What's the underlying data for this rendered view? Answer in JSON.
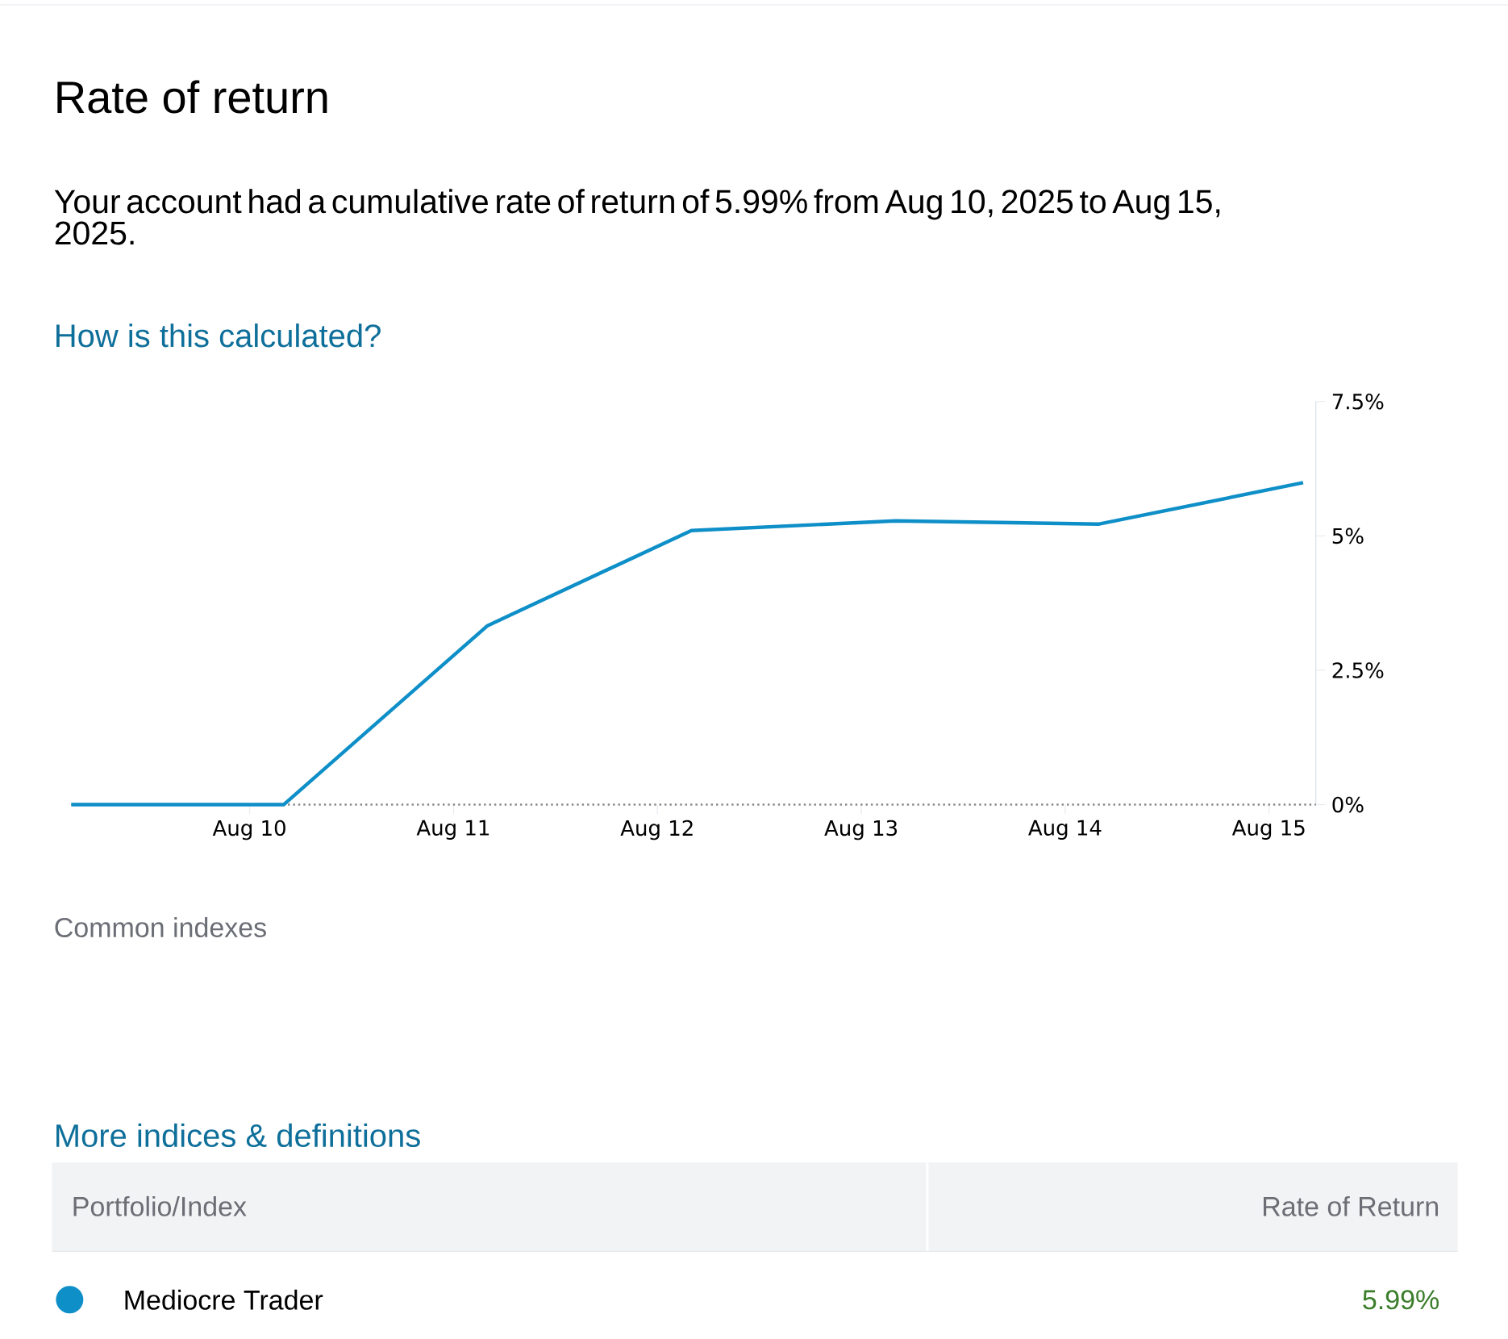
{
  "chart_data": {
    "type": "line",
    "title": "Rate of return",
    "subtitle": "Your account had a cumulative rate of return of 5.99% from Aug 10, 2025 to Aug 15, 2025.",
    "x": [
      "2025-08-09T03:00",
      "2025-08-10T04:00",
      "2025-08-11T04:00",
      "2025-08-12T04:00",
      "2025-08-13T04:00",
      "2025-08-14T04:00",
      "2025-08-15T04:00"
    ],
    "series": [
      {
        "name": "Mediocre Trader",
        "color": "#0e8fc8",
        "values": [
          0,
          0,
          3.33,
          5.1,
          5.28,
          5.22,
          5.99
        ]
      }
    ],
    "xlim": [
      "2025-08-09T03:00",
      "2025-08-15T05:30"
    ],
    "xticks": [
      {
        "value": "2025-08-10",
        "label": "Aug 10"
      },
      {
        "value": "2025-08-11",
        "label": "Aug 11"
      },
      {
        "value": "2025-08-12",
        "label": "Aug 12"
      },
      {
        "value": "2025-08-13",
        "label": "Aug 13"
      },
      {
        "value": "2025-08-14",
        "label": "Aug 14"
      },
      {
        "value": "2025-08-15",
        "label": "Aug 15"
      }
    ],
    "ylim": [
      0,
      7.5
    ],
    "yticks": [
      {
        "value": 0,
        "label": "0%"
      },
      {
        "value": 2.5,
        "label": "2.5%"
      },
      {
        "value": 5,
        "label": "5%"
      },
      {
        "value": 7.5,
        "label": "7.5%"
      }
    ],
    "ref_lines": [
      {
        "axis": "y",
        "value": 0,
        "color": "#888888",
        "line_style": "dotted"
      }
    ],
    "legend": "bottom",
    "line_style": "solid",
    "annotations": [
      "How is this calculated?",
      "Common indexes",
      "More indices & definitions",
      "Portfolio/Index",
      "Rate of Return",
      "5.99%"
    ]
  }
}
